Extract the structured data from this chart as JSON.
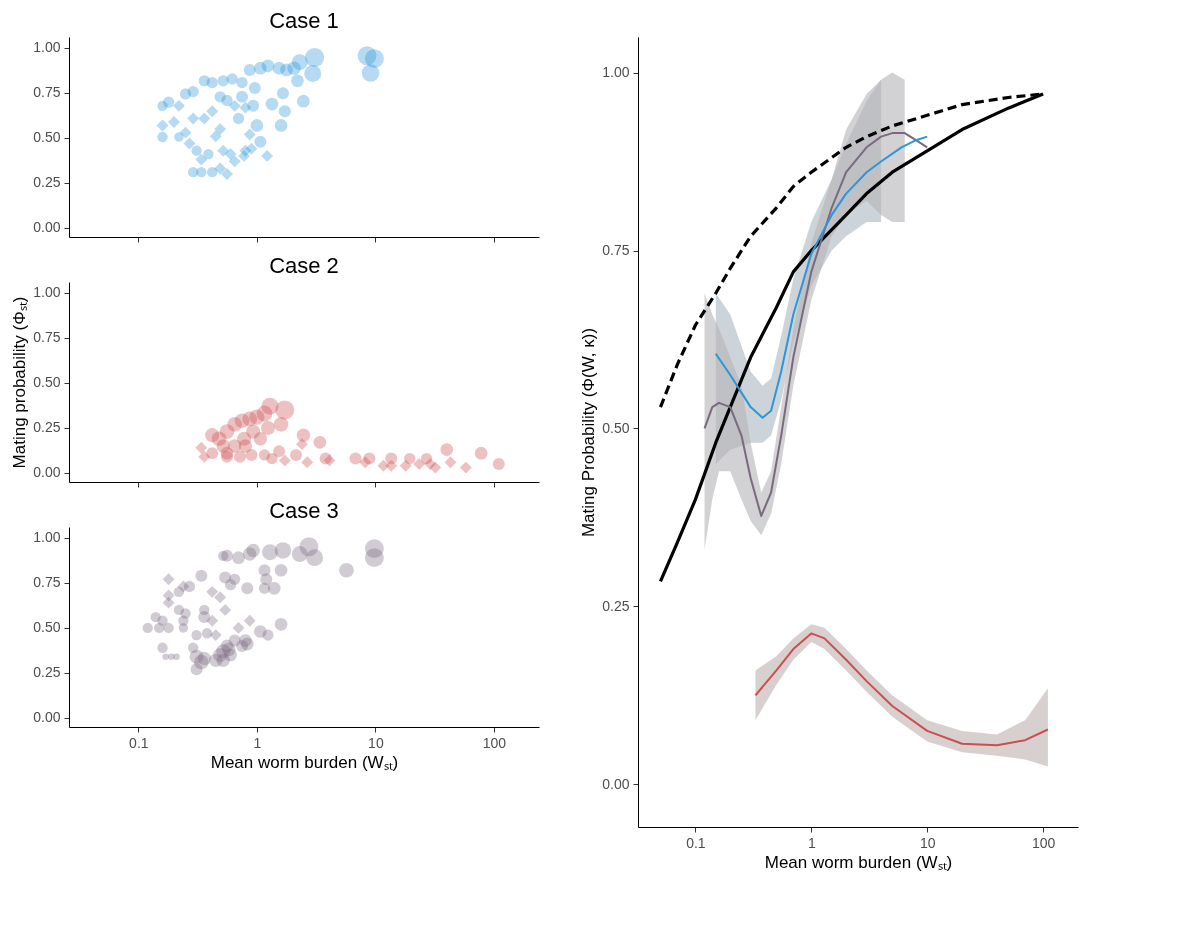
{
  "chart_data": [
    {
      "type": "bubble",
      "title": "Case 1",
      "log": "x",
      "grid": false,
      "legend": false,
      "tick_labels": "y",
      "xlim": [
        0.026,
        240
      ],
      "xticks": [
        0.1,
        1,
        10,
        100
      ],
      "ylim": [
        -0.05,
        1.06
      ],
      "yticks": [
        {
          "value": 0,
          "label": "0.00"
        },
        {
          "value": 0.25,
          "label": "0.25"
        },
        {
          "value": 0.5,
          "label": "0.50"
        },
        {
          "value": 0.75,
          "label": "0.75"
        },
        {
          "value": 1,
          "label": "1.00"
        }
      ],
      "series": [
        {
          "color": "#2b96d9",
          "marker": "circle",
          "x": [
            3.07,
            8.5,
            9.8,
            9.1,
            2.96,
            2.3,
            0.87,
            1.07,
            1.24,
            1.54,
            1.78,
            2.06,
            2.2,
            0.96,
            0.75,
            0.62,
            0.52,
            0.42,
            0.36,
            0.29,
            0.25,
            0.56,
            0.75,
            0.93,
            1.34,
            1.66,
            1.72,
            2.47,
            1.6,
            1.0,
            1.07,
            0.7,
            0.49,
            0.16,
            0.22,
            0.34,
            0.29,
            0.42,
            0.31,
            0.39,
            0.18,
            0.16
          ],
          "values": [
            0.946,
            0.956,
            0.94,
            0.86,
            0.857,
            0.92,
            0.877,
            0.887,
            0.9,
            0.887,
            0.877,
            0.887,
            0.817,
            0.777,
            0.807,
            0.827,
            0.817,
            0.807,
            0.817,
            0.757,
            0.744,
            0.708,
            0.728,
            0.678,
            0.688,
            0.748,
            0.648,
            0.704,
            0.569,
            0.569,
            0.479,
            0.608,
            0.728,
            0.505,
            0.505,
            0.31,
            0.31,
            0.31,
            0.429,
            0.41,
            0.698,
            0.678
          ],
          "sizes": [
            1,
            1,
            1,
            0.85,
            0.8,
            0.7,
            0.4,
            0.45,
            0.45,
            0.45,
            0.45,
            0.5,
            0.45,
            0.4,
            0.35,
            0.35,
            0.35,
            0.35,
            0.35,
            0.35,
            0.35,
            0.35,
            0.4,
            0.4,
            0.45,
            0.4,
            0.4,
            0.45,
            0.45,
            0.45,
            0.4,
            0.35,
            0.35,
            0.3,
            0.25,
            0.3,
            0.3,
            0.3,
            0.3,
            0.3,
            0.35,
            0.3
          ]
        },
        {
          "color": "#2b96d9",
          "marker": "diamond",
          "x": [
            0.22,
            0.87,
            0.42,
            0.36,
            0.29,
            0.25,
            0.2,
            0.16,
            0.27,
            0.34,
            0.45,
            0.49,
            0.52,
            0.6,
            0.65,
            0.56,
            0.49,
            0.8,
            0.9,
            1.22,
            0.78,
            0.65,
            0.8
          ],
          "values": [
            0.678,
            0.519,
            0.648,
            0.608,
            0.608,
            0.529,
            0.588,
            0.569,
            0.469,
            0.38,
            0.509,
            0.549,
            0.429,
            0.41,
            0.37,
            0.3,
            0.33,
            0.429,
            0.44,
            0.4,
            0.4,
            0.678,
            0.668
          ],
          "sizes": [
            0.25,
            0.25,
            0.25,
            0.25,
            0.25,
            0.25,
            0.25,
            0.25,
            0.25,
            0.25,
            0.25,
            0.25,
            0.25,
            0.25,
            0.25,
            0.25,
            0.25,
            0.25,
            0.25,
            0.25,
            0.25,
            0.25,
            0.25
          ]
        }
      ]
    },
    {
      "type": "bubble",
      "title": "Case 2",
      "ylabel": "Mating probability (Φₛₜ)",
      "log": "x",
      "grid": false,
      "legend": false,
      "tick_labels": "y",
      "xlim": [
        0.026,
        240
      ],
      "xticks": [
        0.1,
        1,
        10,
        100
      ],
      "ylim": [
        -0.05,
        1.06
      ],
      "yticks": [
        {
          "value": 0,
          "label": "0.00"
        },
        {
          "value": 0.25,
          "label": "0.25"
        },
        {
          "value": 0.5,
          "label": "0.50"
        },
        {
          "value": 0.75,
          "label": "0.75"
        },
        {
          "value": 1,
          "label": "1.00"
        }
      ],
      "series": [
        {
          "color": "#cc4e4e",
          "marker": "circle",
          "x": [
            0.48,
            0.42,
            0.56,
            0.65,
            0.75,
            0.87,
            1.0,
            1.16,
            1.29,
            1.72,
            1.6,
            0.93,
            0.78,
            0.65,
            0.56,
            0.42,
            0.52,
            0.8,
            1.07,
            1.24,
            0.56,
            0.72,
            0.9,
            1.16,
            1.34,
            1.54,
            2.14,
            2.47,
            3.4,
            3.8,
            6.8,
            8.9,
            13.6,
            19.5,
            27,
            40,
            78,
            110
          ],
          "values": [
            0.19,
            0.21,
            0.23,
            0.27,
            0.29,
            0.3,
            0.31,
            0.33,
            0.37,
            0.35,
            0.27,
            0.23,
            0.19,
            0.15,
            0.11,
            0.11,
            0.15,
            0.15,
            0.19,
            0.25,
            0.09,
            0.09,
            0.1,
            0.1,
            0.08,
            0.12,
            0.1,
            0.21,
            0.17,
            0.08,
            0.08,
            0.08,
            0.08,
            0.08,
            0.08,
            0.13,
            0.11,
            0.05
          ],
          "sizes": [
            0.6,
            0.55,
            0.6,
            0.6,
            0.6,
            0.6,
            0.65,
            0.7,
            0.8,
            1,
            0.6,
            0.55,
            0.55,
            0.5,
            0.45,
            0.4,
            0.5,
            0.5,
            0.5,
            0.55,
            0.4,
            0.4,
            0.4,
            0.35,
            0.35,
            0.4,
            0.4,
            0.5,
            0.45,
            0.4,
            0.4,
            0.4,
            0.4,
            0.35,
            0.35,
            0.45,
            0.45,
            0.4
          ]
        },
        {
          "color": "#cc4e4e",
          "marker": "diamond",
          "x": [
            0.34,
            0.36,
            1.72,
            2.4,
            2.66,
            4.1,
            8.2,
            11.7,
            13.6,
            18,
            23.4,
            29,
            32,
            43,
            58
          ],
          "values": [
            0.14,
            0.09,
            0.07,
            0.16,
            0.06,
            0.07,
            0.06,
            0.04,
            0.04,
            0.04,
            0.05,
            0.05,
            0.03,
            0.06,
            0.03
          ],
          "sizes": [
            0.25,
            0.25,
            0.25,
            0.25,
            0.25,
            0.25,
            0.25,
            0.25,
            0.25,
            0.25,
            0.25,
            0.25,
            0.25,
            0.25,
            0.25
          ]
        }
      ]
    },
    {
      "type": "bubble",
      "title": "Case 3",
      "xlabel": "Mean worm burden (Wₛₜ)",
      "log": "x",
      "grid": false,
      "legend": false,
      "xlim": [
        0.026,
        240
      ],
      "xticks": [
        0.1,
        1,
        10,
        100
      ],
      "ylim": [
        -0.05,
        1.06
      ],
      "yticks": [
        {
          "value": 0,
          "label": "0.00"
        },
        {
          "value": 0.25,
          "label": "0.25"
        },
        {
          "value": 0.5,
          "label": "0.50"
        },
        {
          "value": 0.75,
          "label": "0.75"
        },
        {
          "value": 1,
          "label": "1.00"
        }
      ],
      "series": [
        {
          "color": "#7a6a80",
          "marker": "circle",
          "x": [
            2.75,
            9.8,
            9.8,
            3.07,
            2.3,
            1.66,
            1.29,
            0.93,
            0.87,
            0.7,
            0.56,
            0.52,
            5.7,
            1.6,
            1.16,
            1.2,
            1.4,
            1.16,
            0.83,
            0.65,
            0.54,
            0.6,
            0.34,
            0.27,
            0.22,
            0.36,
            0.36,
            0.14,
            0.22,
            0.25,
            0.24,
            0.16,
            0.12,
            0.15,
            0.18,
            0.24,
            0.31,
            0.38,
            1.07,
            1.24,
            1.6,
            0.8,
            0.65,
            0.56,
            0.75,
            0.83,
            0.16,
            0.17,
            0.19,
            0.21,
            0.29,
            0.31,
            0.34,
            0.31,
            0.36,
            0.49,
            0.52,
            0.58,
            0.45,
            0.52,
            0.6
          ],
          "values": [
            0.95,
            0.94,
            0.89,
            0.89,
            0.91,
            0.93,
            0.92,
            0.93,
            0.91,
            0.89,
            0.9,
            0.9,
            0.82,
            0.82,
            0.82,
            0.77,
            0.72,
            0.72,
            0.72,
            0.77,
            0.78,
            0.74,
            0.79,
            0.73,
            0.7,
            0.6,
            0.56,
            0.56,
            0.6,
            0.58,
            0.54,
            0.54,
            0.5,
            0.5,
            0.5,
            0.5,
            0.46,
            0.47,
            0.48,
            0.46,
            0.52,
            0.43,
            0.43,
            0.4,
            0.4,
            0.41,
            0.39,
            0.34,
            0.34,
            0.34,
            0.39,
            0.34,
            0.31,
            0.27,
            0.33,
            0.35,
            0.37,
            0.38,
            0.32,
            0.32,
            0.35
          ],
          "sizes": [
            1,
            1,
            1,
            0.8,
            0.7,
            0.75,
            0.7,
            0.5,
            0.5,
            0.45,
            0.4,
            0.3,
            0.6,
            0.45,
            0.4,
            0.4,
            0.45,
            0.35,
            0.4,
            0.35,
            0.4,
            0.35,
            0.4,
            0.35,
            0.3,
            0.3,
            0.4,
            0.3,
            0.3,
            0.3,
            0.3,
            0.3,
            0.3,
            0.3,
            0.3,
            0.25,
            0.3,
            0.3,
            0.45,
            0.35,
            0.45,
            0.45,
            0.4,
            0.45,
            0.4,
            0.45,
            0.3,
            0.12,
            0.12,
            0.12,
            0.3,
            0.55,
            0.6,
            0.4,
            0.5,
            0.55,
            0.55,
            0.5,
            0.5,
            0.5,
            0.45
          ]
        },
        {
          "color": "#7a6a80",
          "marker": "diamond",
          "x": [
            0.18,
            0.24,
            0.18,
            0.18,
            0.42,
            0.49,
            0.54,
            0.42,
            0.45,
            0.87,
            0.7
          ],
          "values": [
            0.77,
            0.73,
            0.68,
            0.64,
            0.7,
            0.67,
            0.6,
            0.54,
            0.46,
            0.54,
            0.5
          ],
          "sizes": [
            0.25,
            0.25,
            0.25,
            0.25,
            0.25,
            0.25,
            0.25,
            0.25,
            0.25,
            0.25,
            0.25
          ]
        }
      ]
    },
    {
      "type": "line",
      "xlabel": "Mean worm burden (Wₛₜ)",
      "ylabel": "Mating Probability (Φ(W, κ))",
      "log": "x",
      "grid": false,
      "marker": "none",
      "xlim": [
        0.032,
        200
      ],
      "xticks": [
        0.1,
        1,
        10,
        100
      ],
      "ylim": [
        -0.06,
        1.05
      ],
      "yticks": [
        {
          "value": 0,
          "label": "0.00"
        },
        {
          "value": 0.25,
          "label": "0.25"
        },
        {
          "value": 0.5,
          "label": "0.50"
        },
        {
          "value": 0.75,
          "label": "0.75"
        },
        {
          "value": 1,
          "label": "1.00"
        }
      ],
      "series": [
        {
          "color": "#2b96d9",
          "line_style": "solid",
          "x": [
            0.15,
            0.2,
            0.3,
            0.38,
            0.45,
            0.55,
            0.7,
            1,
            1.5,
            2,
            3,
            4,
            6,
            8,
            10
          ],
          "values": [
            0.605,
            0.575,
            0.53,
            0.515,
            0.525,
            0.58,
            0.66,
            0.745,
            0.8,
            0.83,
            0.86,
            0.875,
            0.895,
            0.905,
            0.91
          ],
          "lower": [
            0.45,
            0.47,
            0.48,
            0.48,
            0.49,
            0.54,
            0.62,
            0.7,
            0.75,
            0.77,
            0.79,
            0.79,
            null,
            null,
            null
          ],
          "upper": [
            0.69,
            0.66,
            0.58,
            0.56,
            0.57,
            0.63,
            0.71,
            0.79,
            0.85,
            0.9,
            0.96,
            0.99,
            null,
            null,
            null
          ]
        },
        {
          "color": "#7a6a80",
          "line_style": "solid",
          "x": [
            0.12,
            0.14,
            0.16,
            0.2,
            0.25,
            0.3,
            0.37,
            0.45,
            0.55,
            0.7,
            1,
            1.5,
            2,
            3,
            4,
            5,
            6.4,
            8,
            10
          ],
          "values": [
            0.5,
            0.53,
            0.536,
            0.53,
            0.49,
            0.43,
            0.377,
            0.41,
            0.49,
            0.6,
            0.72,
            0.81,
            0.86,
            0.895,
            0.91,
            0.915,
            0.915,
            0.905,
            0.895
          ],
          "lower": [
            0.33,
            0.4,
            0.44,
            0.44,
            0.4,
            0.37,
            0.35,
            0.38,
            0.45,
            0.56,
            0.68,
            0.77,
            0.8,
            0.82,
            0.8,
            0.79,
            0.79,
            null,
            null
          ],
          "upper": [
            0.69,
            0.66,
            0.64,
            0.6,
            0.56,
            0.48,
            0.41,
            0.44,
            0.53,
            0.64,
            0.76,
            0.85,
            0.92,
            0.97,
            0.99,
            1.0,
            0.99,
            null,
            null
          ]
        },
        {
          "color": "#cc4e4e",
          "line_style": "solid",
          "x": [
            0.33,
            0.5,
            0.7,
            1,
            1.3,
            2,
            3,
            5,
            10,
            20,
            40,
            70,
            110
          ],
          "values": [
            0.125,
            0.16,
            0.19,
            0.212,
            0.205,
            0.175,
            0.145,
            0.11,
            0.075,
            0.057,
            0.055,
            0.062,
            0.077
          ],
          "lower": [
            0.09,
            0.14,
            0.175,
            0.2,
            0.19,
            0.16,
            0.13,
            0.095,
            0.06,
            0.045,
            0.04,
            0.035,
            0.025
          ],
          "upper": [
            0.16,
            0.18,
            0.205,
            0.225,
            0.22,
            0.19,
            0.16,
            0.125,
            0.09,
            0.075,
            0.07,
            0.09,
            0.135
          ]
        },
        {
          "color": "#000000",
          "line_style": "solid",
          "x": [
            0.05,
            0.07,
            0.1,
            0.15,
            0.2,
            0.3,
            0.5,
            0.7,
            1,
            2,
            3,
            5,
            10,
            20,
            50,
            100
          ],
          "values": [
            0.285,
            0.34,
            0.4,
            0.48,
            0.53,
            0.6,
            0.67,
            0.72,
            0.75,
            0.8,
            0.83,
            0.86,
            0.89,
            0.92,
            0.95,
            0.97
          ]
        },
        {
          "color": "#000000",
          "line_style": "dashed",
          "x": [
            0.05,
            0.07,
            0.1,
            0.15,
            0.2,
            0.3,
            0.5,
            0.7,
            1,
            2,
            3,
            5,
            10,
            20,
            50,
            100
          ],
          "values": [
            0.53,
            0.59,
            0.645,
            0.69,
            0.725,
            0.77,
            0.81,
            0.84,
            0.86,
            0.895,
            0.91,
            0.925,
            0.94,
            0.955,
            0.965,
            0.97
          ]
        }
      ]
    }
  ]
}
